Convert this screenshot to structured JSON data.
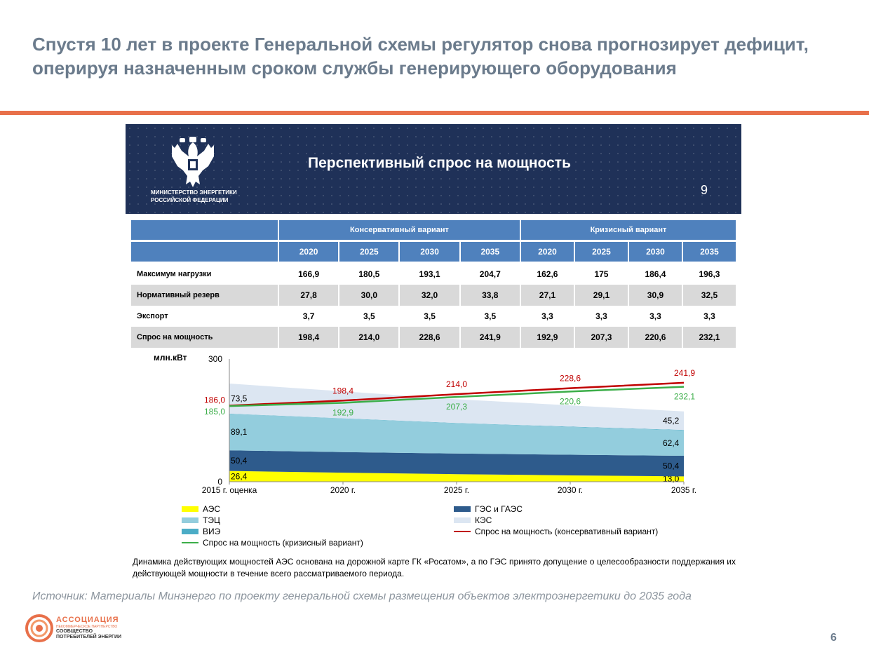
{
  "slide": {
    "title": "Спустя 10 лет в проекте Генеральной схемы регулятор снова прогнозирует дефицит, оперируя назначенным сроком службы генерирующего оборудования",
    "source": "Источник: Материалы Минэнерго по проекту генеральной схемы размещения объектов электроэнергетики до 2035 года",
    "page_number": "6",
    "accent_color": "#e8704a"
  },
  "logo": {
    "name": "АССОЦИАЦИЯ",
    "sub1": "НЕКОММЕРЧЕСКОЕ ПАРТНЕРСТВО",
    "sub2_line1": "СООБЩЕСТВО",
    "sub2_line2": "ПОТРЕБИТЕЛЕЙ ЭНЕРГИИ"
  },
  "panel": {
    "ministry_line1": "МИНИСТЕРСТВО ЭНЕРГЕТИКИ",
    "ministry_line2": "РОССИЙСКОЙ ФЕДЕРАЦИИ",
    "title": "Перспективный спрос на мощность",
    "slide_number": "9",
    "banner_color": "#1f3158",
    "note": "Динамика действующих мощностей АЭС основана на дорожной карте ГК «Росатом», а по ГЭС принято допущение о целесообразности поддержания их действующей мощности в течение всего рассматриваемого периода."
  },
  "chart_data": [
    {
      "type": "table",
      "column_groups": [
        "Консервативный вариант",
        "Кризисный вариант"
      ],
      "years": [
        "2020",
        "2025",
        "2030",
        "2035",
        "2020",
        "2025",
        "2030",
        "2035"
      ],
      "rows": [
        {
          "label": "Максимум нагрузки",
          "values": [
            "166,9",
            "180,5",
            "193,1",
            "204,7",
            "162,6",
            "175",
            "186,4",
            "196,3"
          ]
        },
        {
          "label": "Нормативный резерв",
          "values": [
            "27,8",
            "30,0",
            "32,0",
            "33,8",
            "27,1",
            "29,1",
            "30,9",
            "32,5"
          ]
        },
        {
          "label": "Экспорт",
          "values": [
            "3,7",
            "3,5",
            "3,5",
            "3,5",
            "3,3",
            "3,3",
            "3,3",
            "3,3"
          ]
        },
        {
          "label": "Спрос на мощность",
          "values": [
            "198,4",
            "214,0",
            "228,6",
            "241,9",
            "192,9",
            "207,3",
            "220,6",
            "232,1"
          ]
        }
      ]
    },
    {
      "type": "area",
      "ylabel": "млн.кВт",
      "ylim": [
        0,
        300
      ],
      "ytick_labels": [
        "0",
        "300"
      ],
      "categories": [
        "2015 г. оценка",
        "2020 г.",
        "2025 г.",
        "2030 г.",
        "2035 г."
      ],
      "stack": [
        {
          "name": "АЭС",
          "color": "#ffff00",
          "values": [
            26.4,
            22.0,
            18.5,
            15.5,
            13.0
          ],
          "labels": {
            "0": "26,4",
            "4": "13,0"
          }
        },
        {
          "name": "ГЭС и ГАЭС",
          "color": "#2e5b8c",
          "values": [
            50.4,
            50.4,
            50.4,
            50.4,
            50.4
          ],
          "labels": {
            "0": "50,4",
            "4": "50,4"
          }
        },
        {
          "name": "ТЭЦ",
          "color": "#93cddd",
          "values": [
            89.1,
            82.0,
            74.0,
            68.0,
            62.4
          ],
          "labels": {
            "0": "89,1",
            "4": "62,4"
          }
        },
        {
          "name": "ВИЭ",
          "color": "#4bacc6",
          "values": [
            0.5,
            0.6,
            0.7,
            0.8,
            0.9
          ],
          "labels": {}
        },
        {
          "name": "КЭС",
          "color": "#dce6f2",
          "values": [
            73.5,
            66.0,
            58.0,
            52.0,
            45.2
          ],
          "labels": {
            "0": "73,5",
            "4": "45,2"
          }
        }
      ],
      "lines": [
        {
          "name": "Спрос на мощность (консервативный вариант)",
          "color": "#c00000",
          "values": [
            186.0,
            198.4,
            214.0,
            228.6,
            241.9
          ],
          "labels": [
            "186,0",
            "198,4",
            "214,0",
            "228,6",
            "241,9"
          ]
        },
        {
          "name": "Спрос на мощность (кризисный вариант)",
          "color": "#3cae49",
          "values": [
            185.0,
            192.9,
            207.3,
            220.6,
            232.1
          ],
          "labels": [
            "185,0",
            "192,9",
            "207,3",
            "220,6",
            "232,1"
          ]
        }
      ]
    }
  ]
}
